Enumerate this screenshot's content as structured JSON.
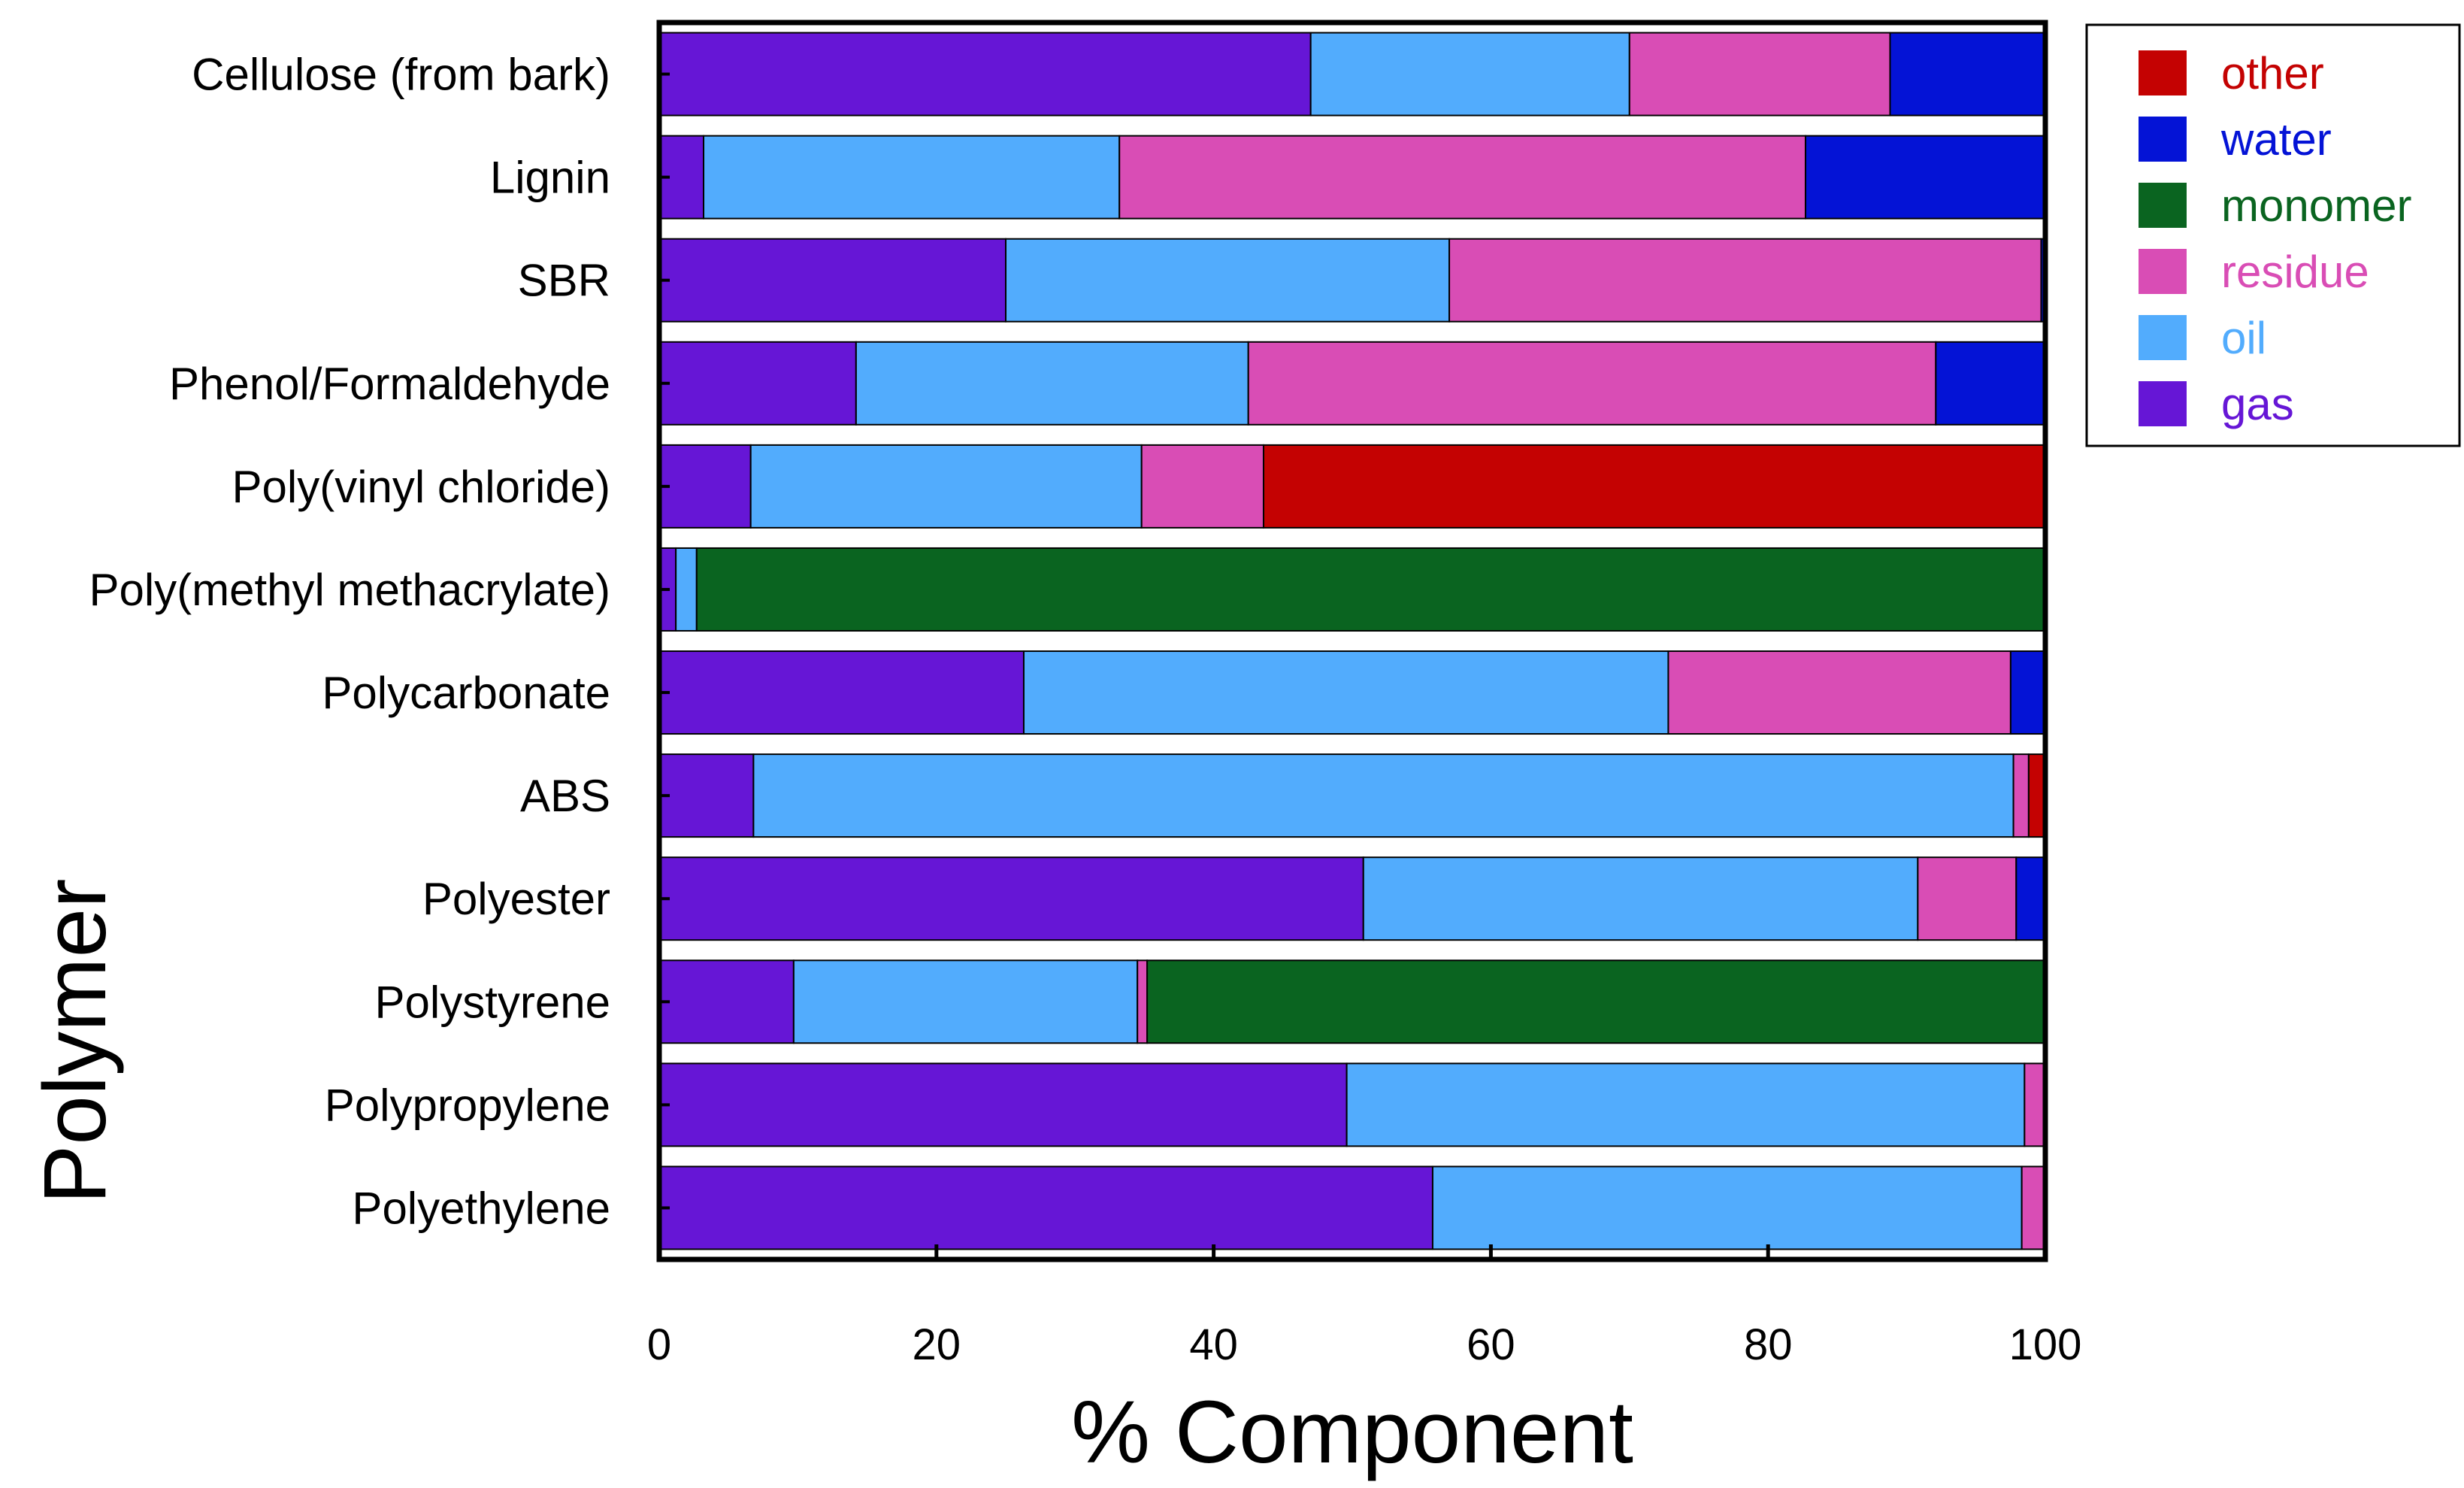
{
  "chart_data": {
    "type": "bar",
    "orientation": "horizontal",
    "stacked": true,
    "xlabel": "% Component",
    "ylabel": "Polymer",
    "xlim": [
      0,
      100
    ],
    "xticks": [
      0,
      20,
      40,
      60,
      80,
      100
    ],
    "grid": false,
    "legend_position": "top-right, outside plot",
    "legend_order": [
      "other",
      "water",
      "monomer",
      "residue",
      "oil",
      "gas"
    ],
    "categories": [
      "Cellulose (from bark)",
      "Lignin",
      "SBR",
      "Phenol/Formaldehyde",
      "Poly(vinyl chloride)",
      "Poly(methyl methacrylate)",
      "Polycarbonate",
      "ABS",
      "Polyester",
      "Polystyrene",
      "Polypropylene",
      "Polyethylene"
    ],
    "series": [
      {
        "name": "gas",
        "color": "#6616D6",
        "values": [
          47,
          3.2,
          25,
          14.2,
          6.6,
          1.2,
          26.3,
          6.8,
          50.8,
          9.7,
          49.6,
          55.8
        ]
      },
      {
        "name": "oil",
        "color": "#52ACFD",
        "values": [
          23,
          30,
          32,
          28.3,
          28.2,
          1.5,
          46.5,
          90.9,
          40,
          24.8,
          48.9,
          42.5
        ]
      },
      {
        "name": "residue",
        "color": "#D94DB5",
        "values": [
          18.8,
          49.5,
          42.7,
          49.6,
          8.8,
          0,
          24.7,
          1.1,
          7.1,
          0.7,
          1.5,
          1.7
        ]
      },
      {
        "name": "monomer",
        "color": "#0A6420",
        "values": [
          0,
          0,
          0,
          0,
          0,
          97.3,
          0,
          0,
          0,
          64.8,
          0,
          0
        ]
      },
      {
        "name": "water",
        "color": "#0413D6",
        "values": [
          11.2,
          17.3,
          0.3,
          7.9,
          0,
          0,
          2.5,
          0,
          2.1,
          0,
          0,
          0
        ]
      },
      {
        "name": "other",
        "color": "#C40202",
        "values": [
          0,
          0,
          0,
          0,
          56.4,
          0,
          0,
          1.2,
          0,
          0,
          0,
          0
        ]
      }
    ]
  }
}
